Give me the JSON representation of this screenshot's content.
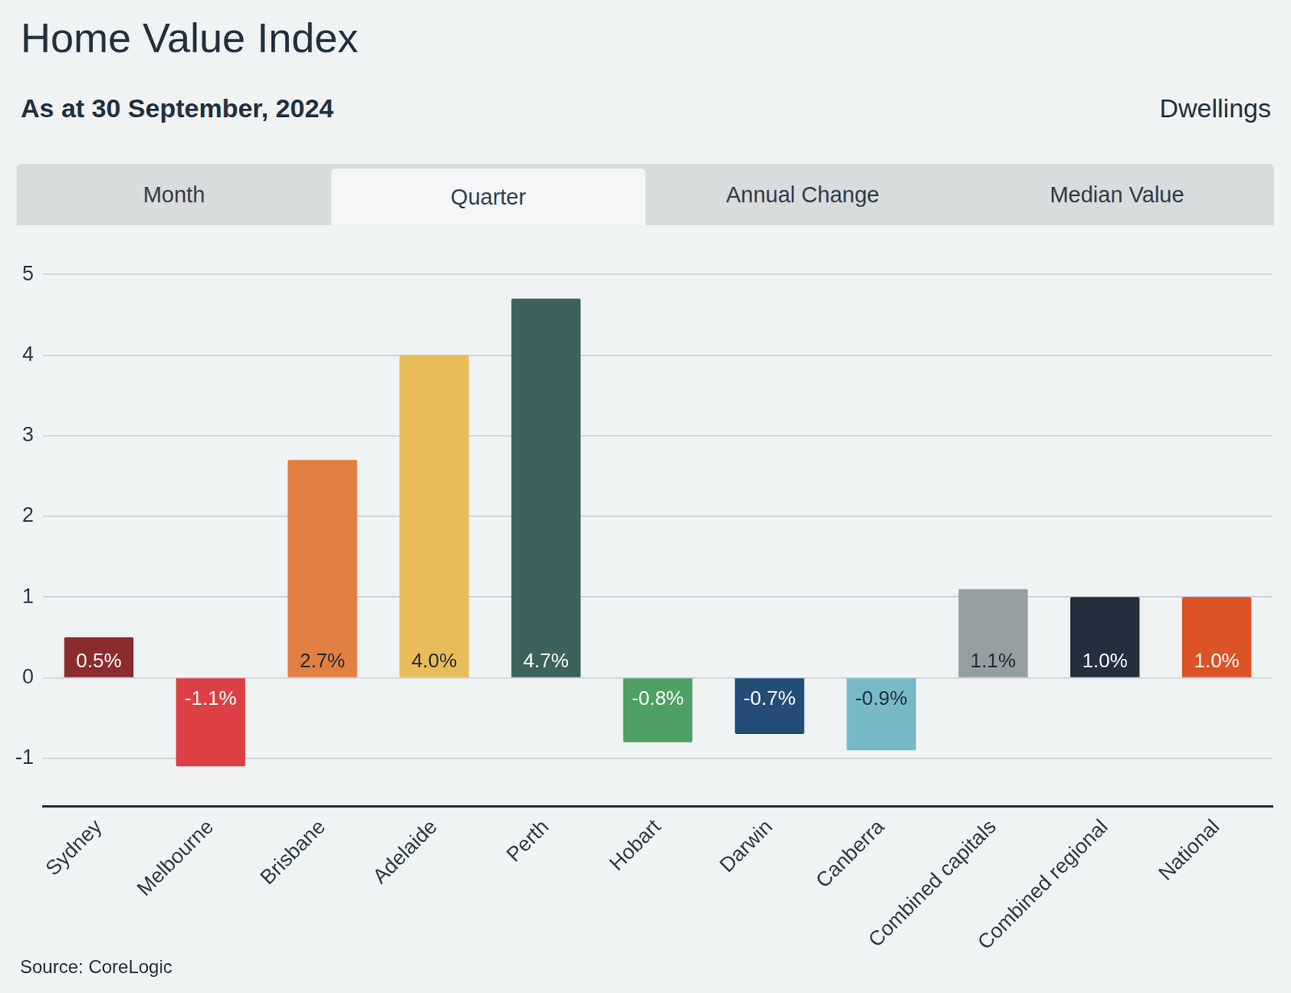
{
  "chart_data": {
    "type": "bar",
    "title": "Home Value Index",
    "subtitle": "As at 30 September, 2024",
    "header_right": "Dwellings",
    "tabs": [
      "Month",
      "Quarter",
      "Annual Change",
      "Median Value"
    ],
    "selected_tab": "Quarter",
    "source": "Source: CoreLogic",
    "categories": [
      "Sydney",
      "Melbourne",
      "Brisbane",
      "Adelaide",
      "Perth",
      "Hobart",
      "Darwin",
      "Canberra",
      "Combined capitals",
      "Combined regional",
      "National"
    ],
    "values": [
      0.5,
      -1.1,
      2.7,
      4.0,
      4.7,
      -0.8,
      -0.7,
      -0.9,
      1.1,
      1.0,
      1.0
    ],
    "value_labels": [
      "0.5%",
      "-1.1%",
      "2.7%",
      "4.0%",
      "4.7%",
      "-0.8%",
      "-0.7%",
      "-0.9%",
      "1.1%",
      "1.0%",
      "1.0%"
    ],
    "colors": [
      "#8b2c2f",
      "#dc4044",
      "#e27f43",
      "#e9bc5a",
      "#3d625e",
      "#4fa064",
      "#234d77",
      "#77bac7",
      "#959ea1",
      "#222f3c",
      "#db5326"
    ],
    "ylim": [
      -1.6,
      5
    ],
    "yticks": [
      -1,
      0,
      1,
      2,
      3,
      4,
      5
    ],
    "grid": true,
    "data_labels": true
  }
}
